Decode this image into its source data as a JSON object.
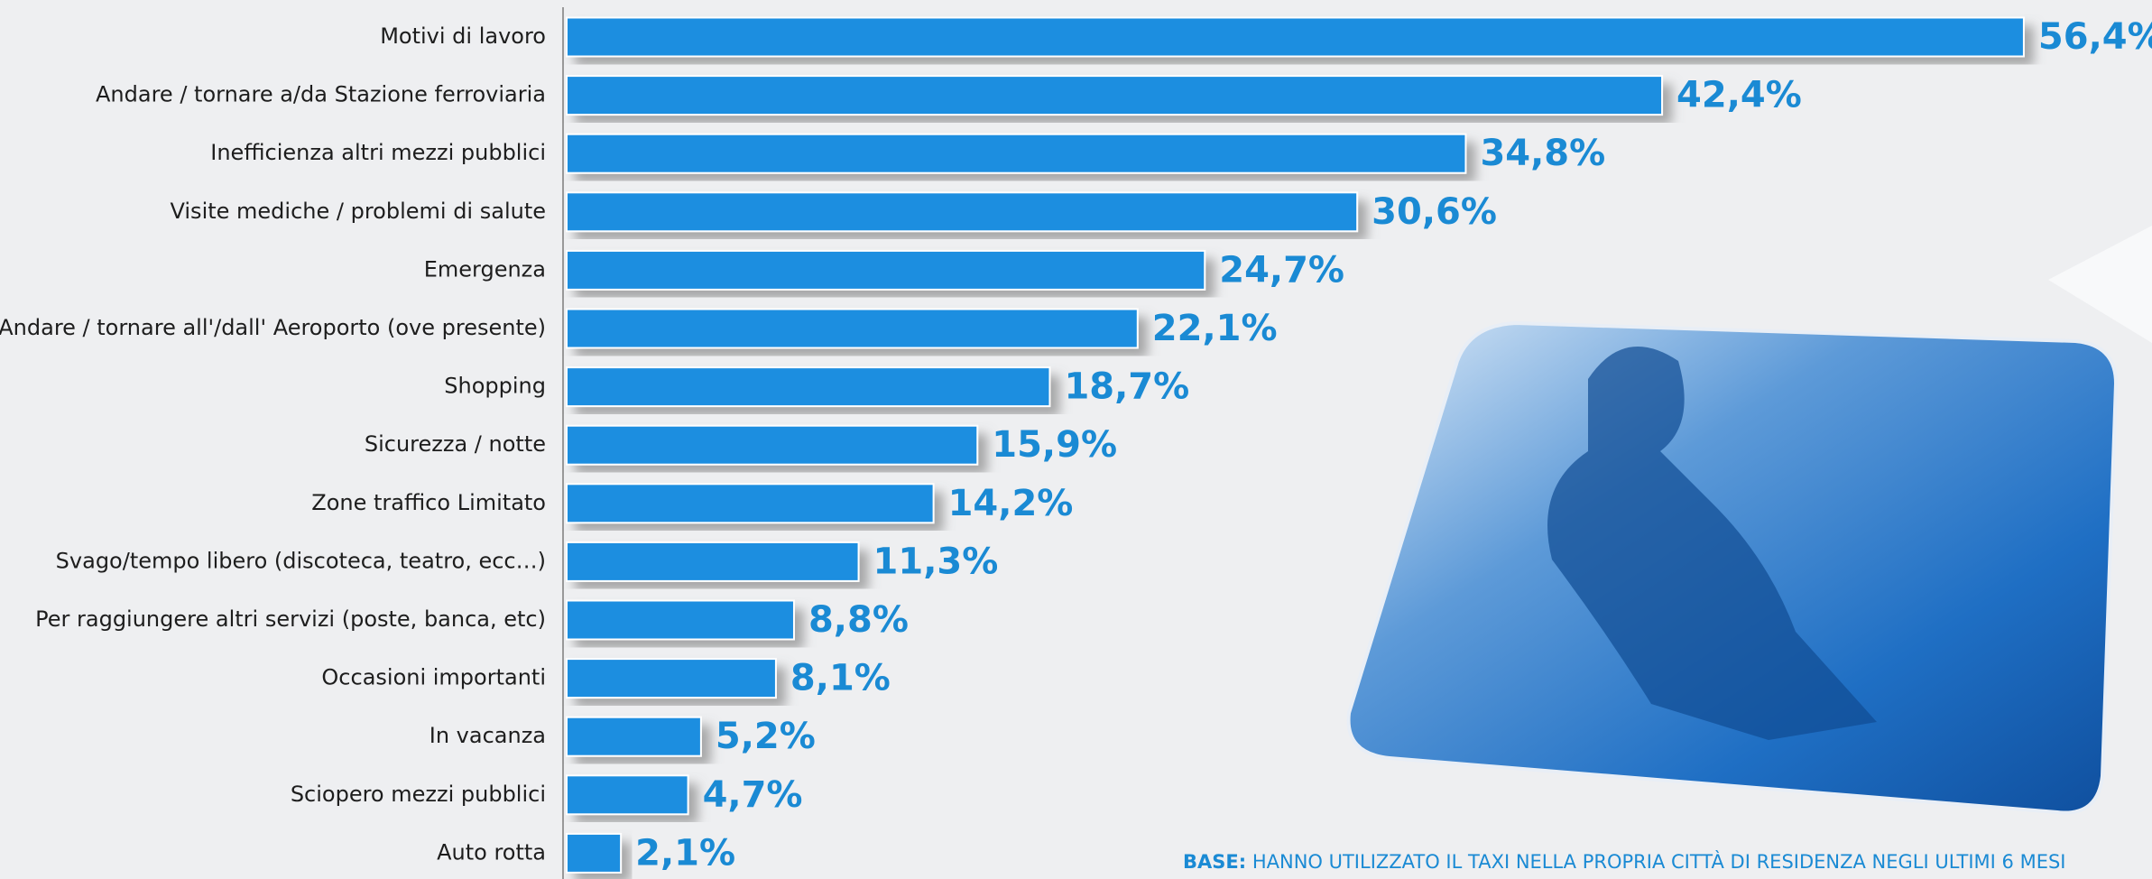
{
  "chart_data": {
    "type": "bar",
    "orientation": "horizontal",
    "categories": [
      "Motivi di lavoro",
      "Andare / tornare a/da Stazione ferroviaria",
      "Inefficienza altri mezzi pubblici",
      "Visite mediche / problemi di salute",
      "Emergenza",
      "Andare / tornare all'/dall' Aeroporto (ove presente)",
      "Shopping",
      "Sicurezza / notte",
      "Zone traffico Limitato",
      "Svago/tempo libero (discoteca, teatro, ecc…)",
      "Per raggiungere altri servizi (poste, banca, etc)",
      "Occasioni importanti",
      "In vacanza",
      "Sciopero mezzi pubblici",
      "Auto rotta"
    ],
    "values": [
      56.4,
      42.4,
      34.8,
      30.6,
      24.7,
      22.1,
      18.7,
      15.9,
      14.2,
      11.3,
      8.8,
      8.1,
      5.2,
      4.7,
      2.1
    ],
    "value_labels": [
      "56,4%",
      "42,4%",
      "34,8%",
      "30,6%",
      "24,7%",
      "22,1%",
      "18,7%",
      "15,9%",
      "14,2%",
      "11,3%",
      "8,8%",
      "8,1%",
      "5,2%",
      "4,7%",
      "2,1%"
    ],
    "color": "#1e8ee0",
    "xlim": [
      0,
      60
    ],
    "base_label": "BASE:",
    "base_text": "HANNO UTILIZZATO IL TAXI NELLA  PROPRIA CITTÀ DI RESIDENZA NEGLI ULTIMI 6 MESI"
  }
}
